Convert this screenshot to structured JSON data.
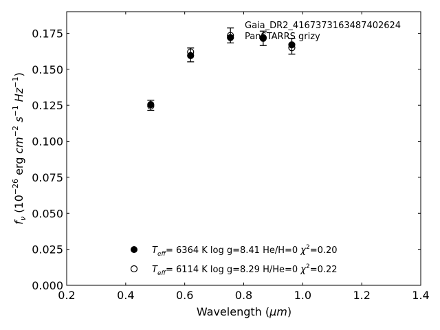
{
  "chart_data": {
    "type": "scatter",
    "xlabel_text": "Wavelength (",
    "xlabel_unit": "μm",
    "xlabel_close": ")",
    "ylabel_text": "f",
    "ylabel_sub": "ν",
    "ylabel_unit_open": " (10",
    "ylabel_exp1": "−26",
    "ylabel_mid": " erg ",
    "ylabel_cm": "cm",
    "ylabel_exp2": "−2",
    "ylabel_s": " s",
    "ylabel_exp3": "−1",
    "ylabel_hz": " Hz",
    "ylabel_exp4": "−1",
    "ylabel_close": ")",
    "xlim": [
      0.2,
      1.4
    ],
    "ylim": [
      0.0,
      0.19
    ],
    "xticks": [
      0.2,
      0.4,
      0.6,
      0.8,
      1.0,
      1.2,
      1.4
    ],
    "xtick_labels": [
      "0.2",
      "0.4",
      "0.6",
      "0.8",
      "1.0",
      "1.2",
      "1.4"
    ],
    "yticks": [
      0.0,
      0.025,
      0.05,
      0.075,
      0.1,
      0.125,
      0.15,
      0.175
    ],
    "ytick_labels": [
      "0.000",
      "0.025",
      "0.050",
      "0.075",
      "0.100",
      "0.125",
      "0.150",
      "0.175"
    ],
    "annotation_lines": [
      "Gaia_DR2_4167373163487402624",
      "PanSTARRS grizy"
    ],
    "observed": {
      "x": [
        0.485,
        0.62,
        0.755,
        0.866,
        0.963
      ],
      "y": [
        0.125,
        0.16,
        0.1735,
        0.1715,
        0.166
      ],
      "yerr": [
        0.0035,
        0.0048,
        0.0052,
        0.005,
        0.0055
      ]
    },
    "series": [
      {
        "marker": "filled",
        "x": [
          0.485,
          0.62,
          0.755,
          0.866,
          0.963
        ],
        "y": [
          0.1255,
          0.1595,
          0.172,
          0.1715,
          0.167
        ],
        "legend": {
          "teff_label": "T",
          "teff_sub": "eff",
          "text": "=  6364 K  log g=8.41  He/H=0  ",
          "chi_label": "χ",
          "chi_exp": "2",
          "chi_value": "=0.20"
        }
      },
      {
        "marker": "open",
        "x": [
          0.485,
          0.62,
          0.755,
          0.866,
          0.963
        ],
        "y": [
          0.1245,
          0.162,
          0.1735,
          0.172,
          0.165
        ],
        "legend": {
          "teff_label": "T",
          "teff_sub": "eff",
          "text": "=  6114 K  log g=8.29  H/He=0  ",
          "chi_label": "χ",
          "chi_exp": "2",
          "chi_value": "=0.22"
        }
      }
    ],
    "legend_position": "lower-center"
  }
}
